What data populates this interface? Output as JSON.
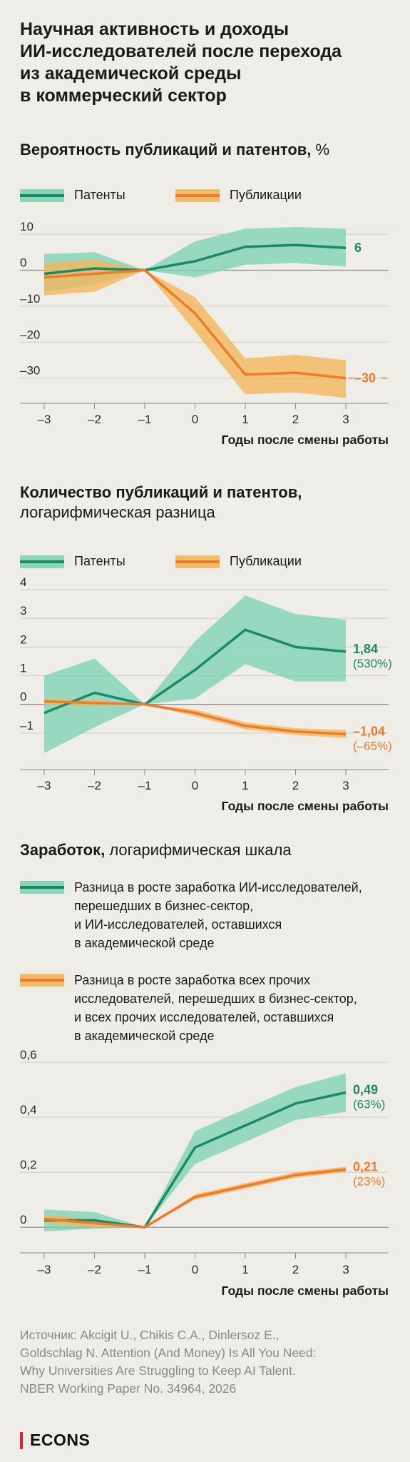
{
  "title": "Научная активность и доходы\nИИ-исследователей после перехода\nиз академической среды\nв коммерческий сектор",
  "colors": {
    "green": "#1a8a66",
    "green_band": "#79d1b3",
    "orange": "#ee7a2c",
    "orange_band": "#f3b65d"
  },
  "sections": {
    "s1": {
      "title_bold": "Вероятность публикаций и патентов,",
      "title_rest": " %"
    },
    "s2": {
      "title_bold": "Количество публикаций и патентов,",
      "title_rest": "логарифмическая разница"
    },
    "s3": {
      "title_bold": "Заработок,",
      "title_rest": " логарифмическая шкала"
    }
  },
  "legend": {
    "patents": "Патенты",
    "publications": "Публикации",
    "ai_earnings": "Разница в росте заработка ИИ-исследователей,\nперешедших в бизнес-сектор,\nи ИИ-исследователей, оставшихся\nв академической среде",
    "other_earnings": "Разница в росте заработка всех прочих\nисследователей, перешедших в бизнес-сектор,\nи всех прочих исследователей, оставшихся\nв академической среде"
  },
  "chart_data": [
    {
      "type": "line",
      "title": "Вероятность публикаций и патентов, %",
      "xlabel": "Годы после смены работы",
      "x": [
        -3,
        -2,
        -1,
        0,
        1,
        2,
        3
      ],
      "x_tick_labels": [
        "–3",
        "–2",
        "–1",
        "0",
        "1",
        "2",
        "3"
      ],
      "ylim": [
        -37,
        12
      ],
      "y_ticks": [
        10,
        0,
        -10,
        -20,
        -30
      ],
      "y_tick_labels": [
        "10",
        "0",
        "–10",
        "–20",
        "–30"
      ],
      "series": [
        {
          "name": "Патенты",
          "color": "green",
          "values": [
            -1,
            0.5,
            0,
            2.5,
            6.5,
            7,
            6.2
          ],
          "lower": [
            -6,
            -4,
            0,
            -2,
            1.5,
            2,
            1
          ],
          "upper": [
            4.5,
            5,
            0,
            8,
            11.5,
            12,
            11.5
          ],
          "end_label": "6"
        },
        {
          "name": "Публикации",
          "color": "orange",
          "values": [
            -2,
            -1,
            0,
            -12,
            -29,
            -28.5,
            -30
          ],
          "lower": [
            -7,
            -6,
            0,
            -17,
            -34.5,
            -34,
            -35.5
          ],
          "upper": [
            2,
            3,
            0,
            -7.5,
            -24.5,
            -23.5,
            -25
          ],
          "end_label": "–30"
        }
      ]
    },
    {
      "type": "line",
      "title": "Количество публикаций и патентов, логарифмическая разница",
      "xlabel": "Годы после смены работы",
      "x": [
        -3,
        -2,
        -1,
        0,
        1,
        2,
        3
      ],
      "x_tick_labels": [
        "–3",
        "–2",
        "–1",
        "0",
        "1",
        "2",
        "3"
      ],
      "ylim": [
        -2.2,
        4.2
      ],
      "y_ticks": [
        4,
        3,
        2,
        1,
        0,
        -1
      ],
      "y_tick_labels": [
        "4",
        "3",
        "2",
        "1",
        "0",
        "–1"
      ],
      "series": [
        {
          "name": "Патенты",
          "color": "green",
          "values": [
            -0.3,
            0.4,
            0,
            1.2,
            2.6,
            2.0,
            1.84
          ],
          "lower": [
            -1.7,
            -0.8,
            0,
            0.2,
            1.4,
            0.8,
            0.8
          ],
          "upper": [
            1.0,
            1.6,
            0,
            2.2,
            3.8,
            3.15,
            2.95
          ],
          "end_label": "1,84",
          "end_sub": "(530%)"
        },
        {
          "name": "Публикации",
          "color": "orange",
          "values": [
            0.1,
            0.05,
            0,
            -0.3,
            -0.75,
            -0.95,
            -1.04
          ],
          "lower": [
            0.0,
            -0.05,
            0,
            -0.42,
            -0.87,
            -1.07,
            -1.18
          ],
          "upper": [
            0.2,
            0.15,
            0,
            -0.18,
            -0.63,
            -0.83,
            -0.9
          ],
          "end_label": "–1,04",
          "end_sub": "(–65%)"
        }
      ]
    },
    {
      "type": "line",
      "title": "Заработок, логарифмическая шкала",
      "xlabel": "Годы после смены работы",
      "x": [
        -3,
        -2,
        -1,
        0,
        1,
        2,
        3
      ],
      "x_tick_labels": [
        "–3",
        "–2",
        "–1",
        "0",
        "1",
        "2",
        "3"
      ],
      "ylim": [
        -0.08,
        0.6
      ],
      "y_ticks": [
        0.6,
        0.4,
        0.2,
        0
      ],
      "y_tick_labels": [
        "0,6",
        "0,4",
        "0,2",
        "0"
      ],
      "series": [
        {
          "name": "ИИ-исследователи",
          "color": "green",
          "values": [
            0.025,
            0.025,
            0,
            0.29,
            0.37,
            0.45,
            0.49
          ],
          "lower": [
            -0.015,
            -0.005,
            0,
            0.23,
            0.31,
            0.39,
            0.42
          ],
          "upper": [
            0.065,
            0.055,
            0,
            0.35,
            0.43,
            0.51,
            0.56
          ],
          "end_label": "0,49",
          "end_sub": "(63%)"
        },
        {
          "name": "Прочие исследователи",
          "color": "orange",
          "values": [
            0.03,
            0.015,
            0,
            0.11,
            0.15,
            0.19,
            0.21
          ],
          "lower": [
            0.015,
            0.0,
            0,
            0.1,
            0.14,
            0.18,
            0.2
          ],
          "upper": [
            0.045,
            0.03,
            0,
            0.12,
            0.16,
            0.2,
            0.22
          ],
          "end_label": "0,21",
          "end_sub": "(23%)"
        }
      ]
    }
  ],
  "source": "Источник: Akcigit U., Chikis C.A., Dinlersoz E.,\nGoldschlag N. Attention (And Money) Is All You Need:\nWhy Universities Are Struggling to Keep AI Talent.\nNBER Working Paper No. 34964, 2026",
  "logo": "ECONS"
}
